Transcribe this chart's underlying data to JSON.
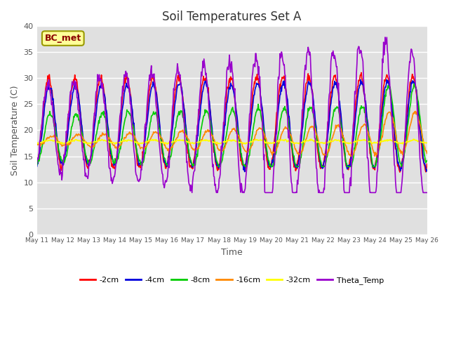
{
  "title": "Soil Temperatures Set A",
  "xlabel": "Time",
  "ylabel": "Soil Temperature (C)",
  "ylim": [
    0,
    40
  ],
  "yticks": [
    0,
    5,
    10,
    15,
    20,
    25,
    30,
    35,
    40
  ],
  "series_order": [
    "-2cm",
    "-4cm",
    "-8cm",
    "-16cm",
    "-32cm",
    "Theta_Temp"
  ],
  "colors": {
    "-2cm": "#ff0000",
    "-4cm": "#0000dd",
    "-8cm": "#00cc00",
    "-16cm": "#ff8800",
    "-32cm": "#ffff00",
    "Theta_Temp": "#9900cc"
  },
  "lw": 1.2,
  "annotation_text": "BC_met",
  "plot_bg_color": "#e0e0e0",
  "n_days": 15,
  "start_day": 11,
  "points_per_day": 48,
  "seed": 7
}
